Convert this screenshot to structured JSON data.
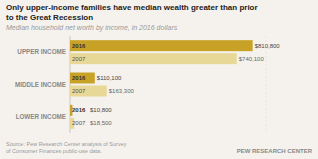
{
  "chart_data": {
    "type": "bar",
    "orientation": "horizontal",
    "title": "Only upper-income families have median wealth greater than prior\nto the Great Recession",
    "subtitle": "Median household net worth by income, in 2016 dollars",
    "annotations": [
      "Source: Pew Research Center analysis of Survey\nof Consumer Finances public-use data.",
      "PEW RESEARCH CENTER"
    ],
    "categories": [
      "UPPER INCOME",
      "MIDDLE INCOME",
      "LOWER INCOME"
    ],
    "series": [
      {
        "name": "2016",
        "color": "#C8A227",
        "values": [
          810800,
          110100,
          10800
        ],
        "value_labels": [
          "$810,800",
          "$110,100",
          "$10,800"
        ]
      },
      {
        "name": "2007",
        "color": "#E8D898",
        "values": [
          740100,
          163300,
          18500
        ],
        "value_labels": [
          "$740,100",
          "$163,300",
          "$18,500"
        ]
      }
    ],
    "xlim": [
      0,
      870000
    ],
    "tick_labels": false,
    "data_labels": true,
    "grid": false
  }
}
